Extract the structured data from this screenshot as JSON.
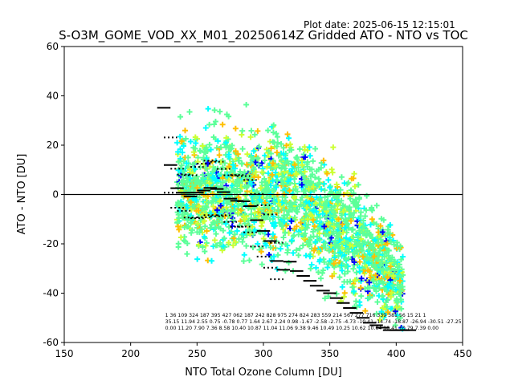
{
  "plot_date": "Plot date: 2025-06-15 12:15:01",
  "title": "S-O3M_GOME_VOD_XX_M01_20250614Z Gridded ATO - NTO vs TOC",
  "chart_data": {
    "type": "scatter",
    "xlabel": "NTO Total Ozone Column [DU]",
    "ylabel": "ATO - NTO [DU]",
    "xlim": [
      150,
      450
    ],
    "ylim": [
      -60,
      60
    ],
    "xticks": [
      150,
      200,
      250,
      300,
      350,
      400,
      450
    ],
    "yticks": [
      -60,
      -40,
      -20,
      0,
      20,
      40,
      60
    ],
    "zero_line": 0,
    "bin_stats": {
      "x": [
        225,
        230,
        235,
        240,
        245,
        250,
        255,
        260,
        265,
        270,
        275,
        280,
        285,
        290,
        295,
        300,
        305,
        310,
        315,
        320,
        325,
        330,
        335,
        340,
        345,
        350,
        355,
        360,
        365,
        370,
        375,
        380,
        385,
        390,
        395,
        400,
        405,
        410
      ],
      "mean": [
        35.15,
        11.94,
        2.55,
        0.75,
        -0.78,
        0.77,
        1.64,
        2.67,
        2.24,
        0.98,
        -1.67,
        -2.58,
        -2.75,
        -4.73,
        -10.41,
        -14.74,
        -18.87,
        -26.94,
        -30.51,
        -27.25,
        -31.0,
        -33.0,
        -35.0,
        -37.0,
        -39.0,
        -40.0,
        -42.0,
        -44.0,
        -46.0,
        -48.0,
        -50.0,
        -52.0,
        -53.0,
        -54.0,
        -55.0,
        -55.0,
        -55.0,
        -55.0
      ],
      "std": [
        0.0,
        11.2,
        7.9,
        7.36,
        8.58,
        10.4,
        10.87,
        11.04,
        11.06,
        9.38,
        9.46,
        10.49,
        10.25,
        10.62,
        10.64,
        10.41,
        10.79,
        7.39,
        0.0,
        0.0,
        0.0,
        0.0,
        0.0,
        0.0,
        0.0,
        0.0,
        0.0,
        0.0,
        0.0,
        0.0,
        0.0,
        0.0,
        0.0,
        0.0,
        0.0,
        0.0,
        0.0,
        0.0
      ]
    },
    "bin_label_rows": {
      "counts": "1    36  109 324 187 395 427 062 187 242 828 975 274 824 283 559 214 567 277 716 339 381 56  15  21   1",
      "means": "35.15 11.94 2.55 0.75 -0.78 0.77 1.64 2.67 2.24 0.98 -1.67 -2.58 -2.75 -4.73 -10.41 -14.74 -18.87 -26.94 -30.51 -27.25",
      "stds": "0.00 11.20 7.90 7.36 8.58 10.40 10.87 11.04 11.06 9.38 9.46 10.49 10.25 10.62 10.64 10.41 10.79 7.39 0.00"
    },
    "colormap": [
      "#0000ff",
      "#00ffff",
      "#5cff99",
      "#ccff33",
      "#ffff00",
      "#ffbf00"
    ],
    "grid": false
  }
}
